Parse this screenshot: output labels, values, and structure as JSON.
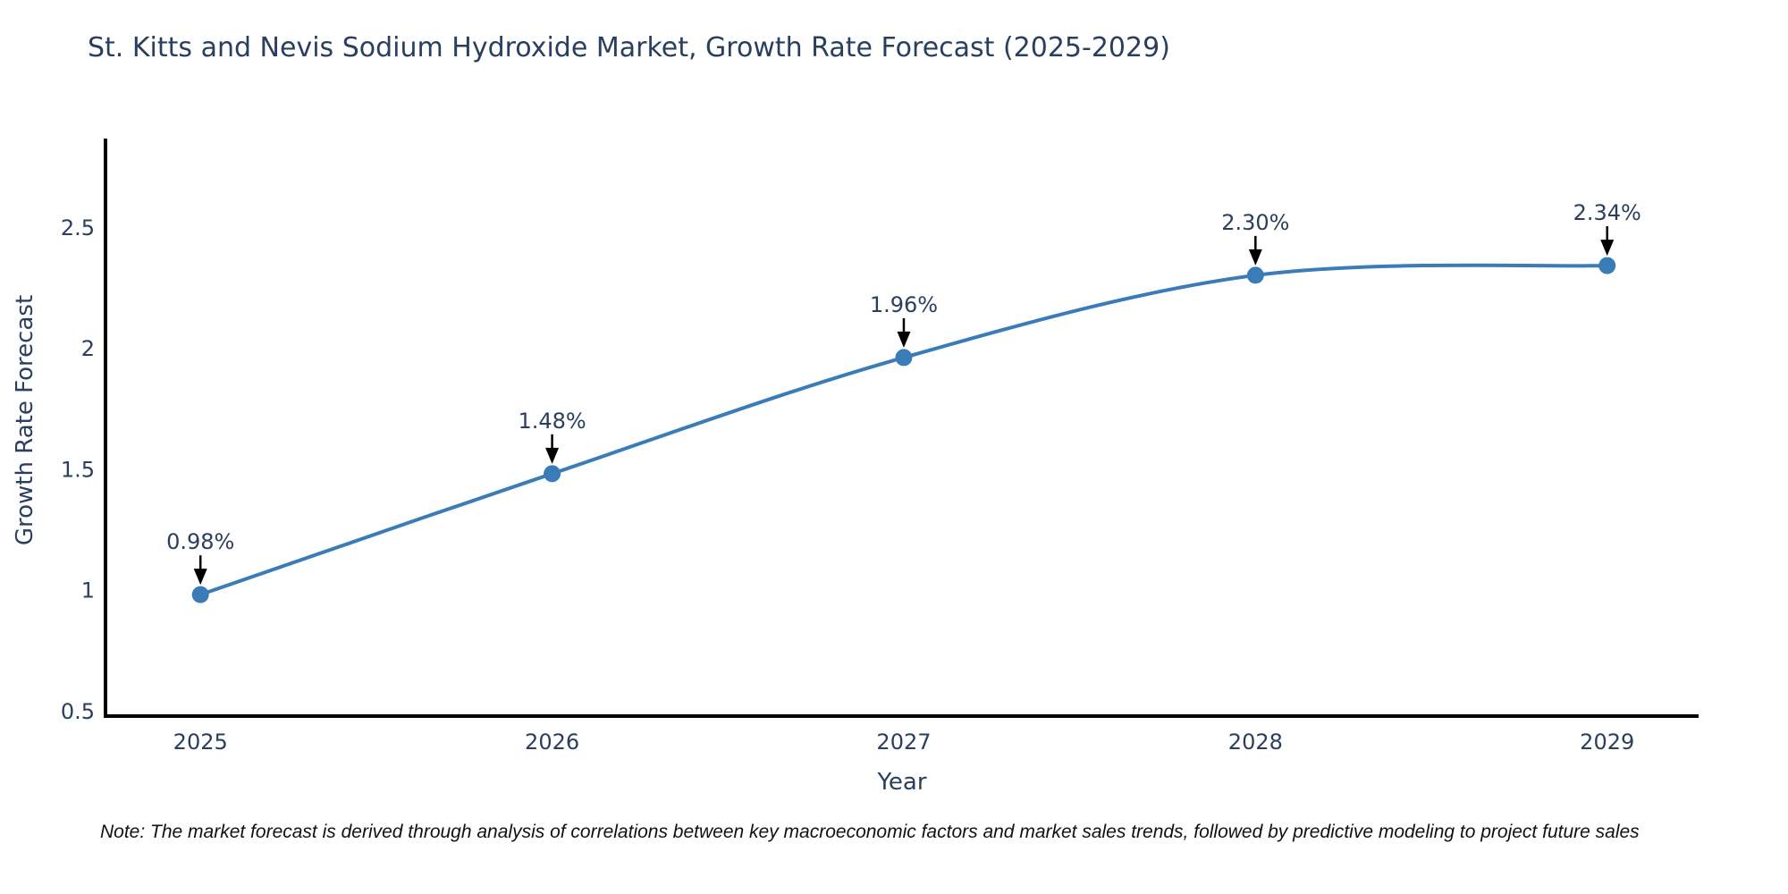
{
  "title": "St. Kitts and Nevis Sodium Hydroxide Market, Growth Rate Forecast (2025-2029)",
  "note": {
    "text": "Note: The market forecast is derived through analysis of correlations between key macroeconomic factors and market sales trends, followed by predictive modeling to project future sales"
  },
  "chart_data": {
    "type": "line",
    "title": "St. Kitts and Nevis Sodium Hydroxide Market, Growth Rate Forecast (2025-2029)",
    "xlabel": "Year",
    "ylabel": "Growth Rate Forecast",
    "x": [
      2025,
      2026,
      2027,
      2028,
      2029
    ],
    "y": [
      0.98,
      1.48,
      1.96,
      2.3,
      2.34
    ],
    "point_labels": [
      "0.98%",
      "1.48%",
      "1.96%",
      "2.30%",
      "2.34%"
    ],
    "line_shape": "spline",
    "grid": false,
    "legend": false,
    "xlim": [
      2024.73,
      2029.26
    ],
    "ylim": [
      0.478,
      2.865
    ],
    "xticks": {
      "values": [
        2025,
        2026,
        2027,
        2028,
        2029
      ],
      "labels": [
        "2025",
        "2026",
        "2027",
        "2028",
        "2029"
      ]
    },
    "yticks": {
      "values": [
        0.5,
        1,
        1.5,
        2,
        2.5
      ],
      "labels": [
        "0.5",
        "1",
        "1.5",
        "2",
        "2.5"
      ]
    },
    "colors": {
      "line": "#3a7cb8",
      "marker": "#3a7cb8",
      "axis": "#000000",
      "text": "#2a3f5f",
      "annotation_text": "#2a3f5f",
      "annotation_arrow": "#000000",
      "note_text": "#111111"
    }
  }
}
